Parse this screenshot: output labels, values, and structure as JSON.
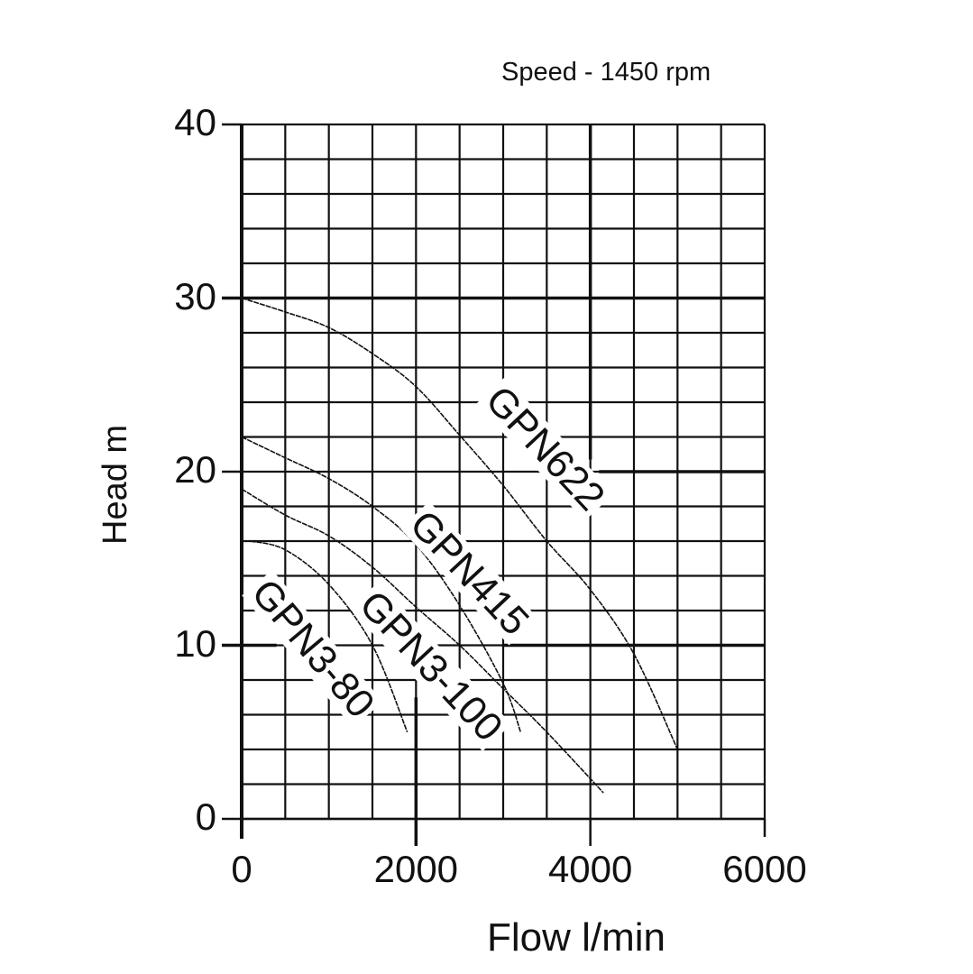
{
  "chart_data": {
    "type": "line",
    "title": "Speed - 1450 rpm",
    "xlabel": "Flow l/min",
    "ylabel": "Head m",
    "xlim": [
      0,
      6000
    ],
    "ylim": [
      0,
      40
    ],
    "x_ticks": [
      "0",
      "2000",
      "4000",
      "6000"
    ],
    "y_ticks": [
      "0",
      "10",
      "20",
      "30",
      "40"
    ],
    "grid": true,
    "grid_x_step": 500,
    "grid_y_step": 2,
    "legend": "inline labels",
    "series": [
      {
        "name": "GPN622",
        "x": [
          0,
          500,
          1000,
          1500,
          2000,
          2500,
          3000,
          3500,
          4000,
          4500,
          5000
        ],
        "y": [
          30,
          29.2,
          28.3,
          26.8,
          24.9,
          22.1,
          19.2,
          16.0,
          13.2,
          9.5,
          4.0
        ]
      },
      {
        "name": "GPN415",
        "x": [
          0,
          500,
          1000,
          1500,
          2000,
          2500,
          3000,
          3200
        ],
        "y": [
          22,
          20.8,
          19.6,
          18.0,
          15.8,
          12.3,
          7.8,
          5.0
        ]
      },
      {
        "name": "GPN3-100",
        "x": [
          0,
          500,
          1000,
          1500,
          2000,
          2500,
          3000,
          3500,
          4150
        ],
        "y": [
          19,
          17.5,
          16.3,
          14.5,
          12.2,
          10.0,
          7.5,
          5.0,
          1.5
        ]
      },
      {
        "name": "GPN3-80",
        "x": [
          100,
          500,
          1000,
          1500,
          1900
        ],
        "y": [
          16,
          15.5,
          13.5,
          10.0,
          5.0
        ]
      }
    ]
  },
  "labels": {
    "title": "Speed - 1450 rpm",
    "xlabel": "Flow l/min",
    "ylabel": "Head m",
    "series_labels": [
      "GPN622",
      "GPN415",
      "GPN3-100",
      "GPN3-80"
    ]
  }
}
